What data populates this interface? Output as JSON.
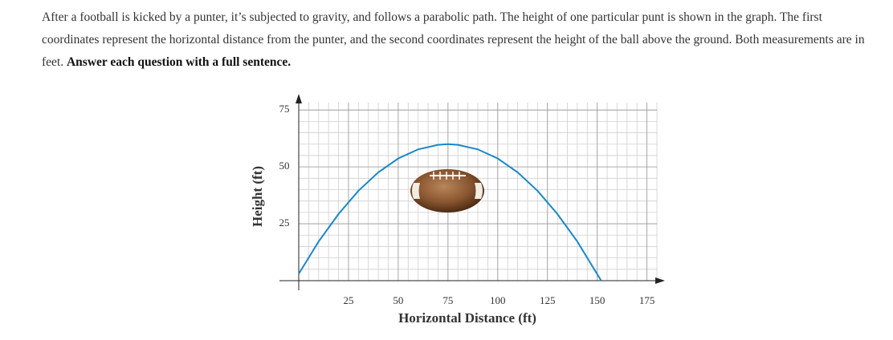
{
  "paragraph": "After a football is kicked by a punter, it’s subjected to gravity, and follows a parabolic path. The height of one particular punt is shown in the graph. The first coordinates represent the horizontal distance from the punter, and the second coordinates represent the height of the ball above the ground. Both measurements are in feet.",
  "paragraph_bold": "Answer each question with a full sentence.",
  "chart_data": {
    "type": "line",
    "x_label": "Horizontal Distance (ft)",
    "y_label": "Height (ft)",
    "x": [
      0,
      10,
      20,
      30,
      40,
      50,
      60,
      70,
      75,
      80,
      90,
      100,
      110,
      120,
      130,
      140,
      152
    ],
    "values": [
      3,
      17.2,
      29.3,
      39.5,
      47.6,
      53.7,
      57.7,
      59.7,
      60,
      59.7,
      57.7,
      53.7,
      47.6,
      39.5,
      29.3,
      17.2,
      0
    ],
    "color": "#1a87c8",
    "xlim": [
      0,
      180
    ],
    "ylim": [
      0,
      80
    ],
    "xticks": [
      25,
      50,
      75,
      100,
      125,
      150,
      175
    ],
    "yticks": [
      25,
      50,
      75
    ],
    "grid": true
  }
}
